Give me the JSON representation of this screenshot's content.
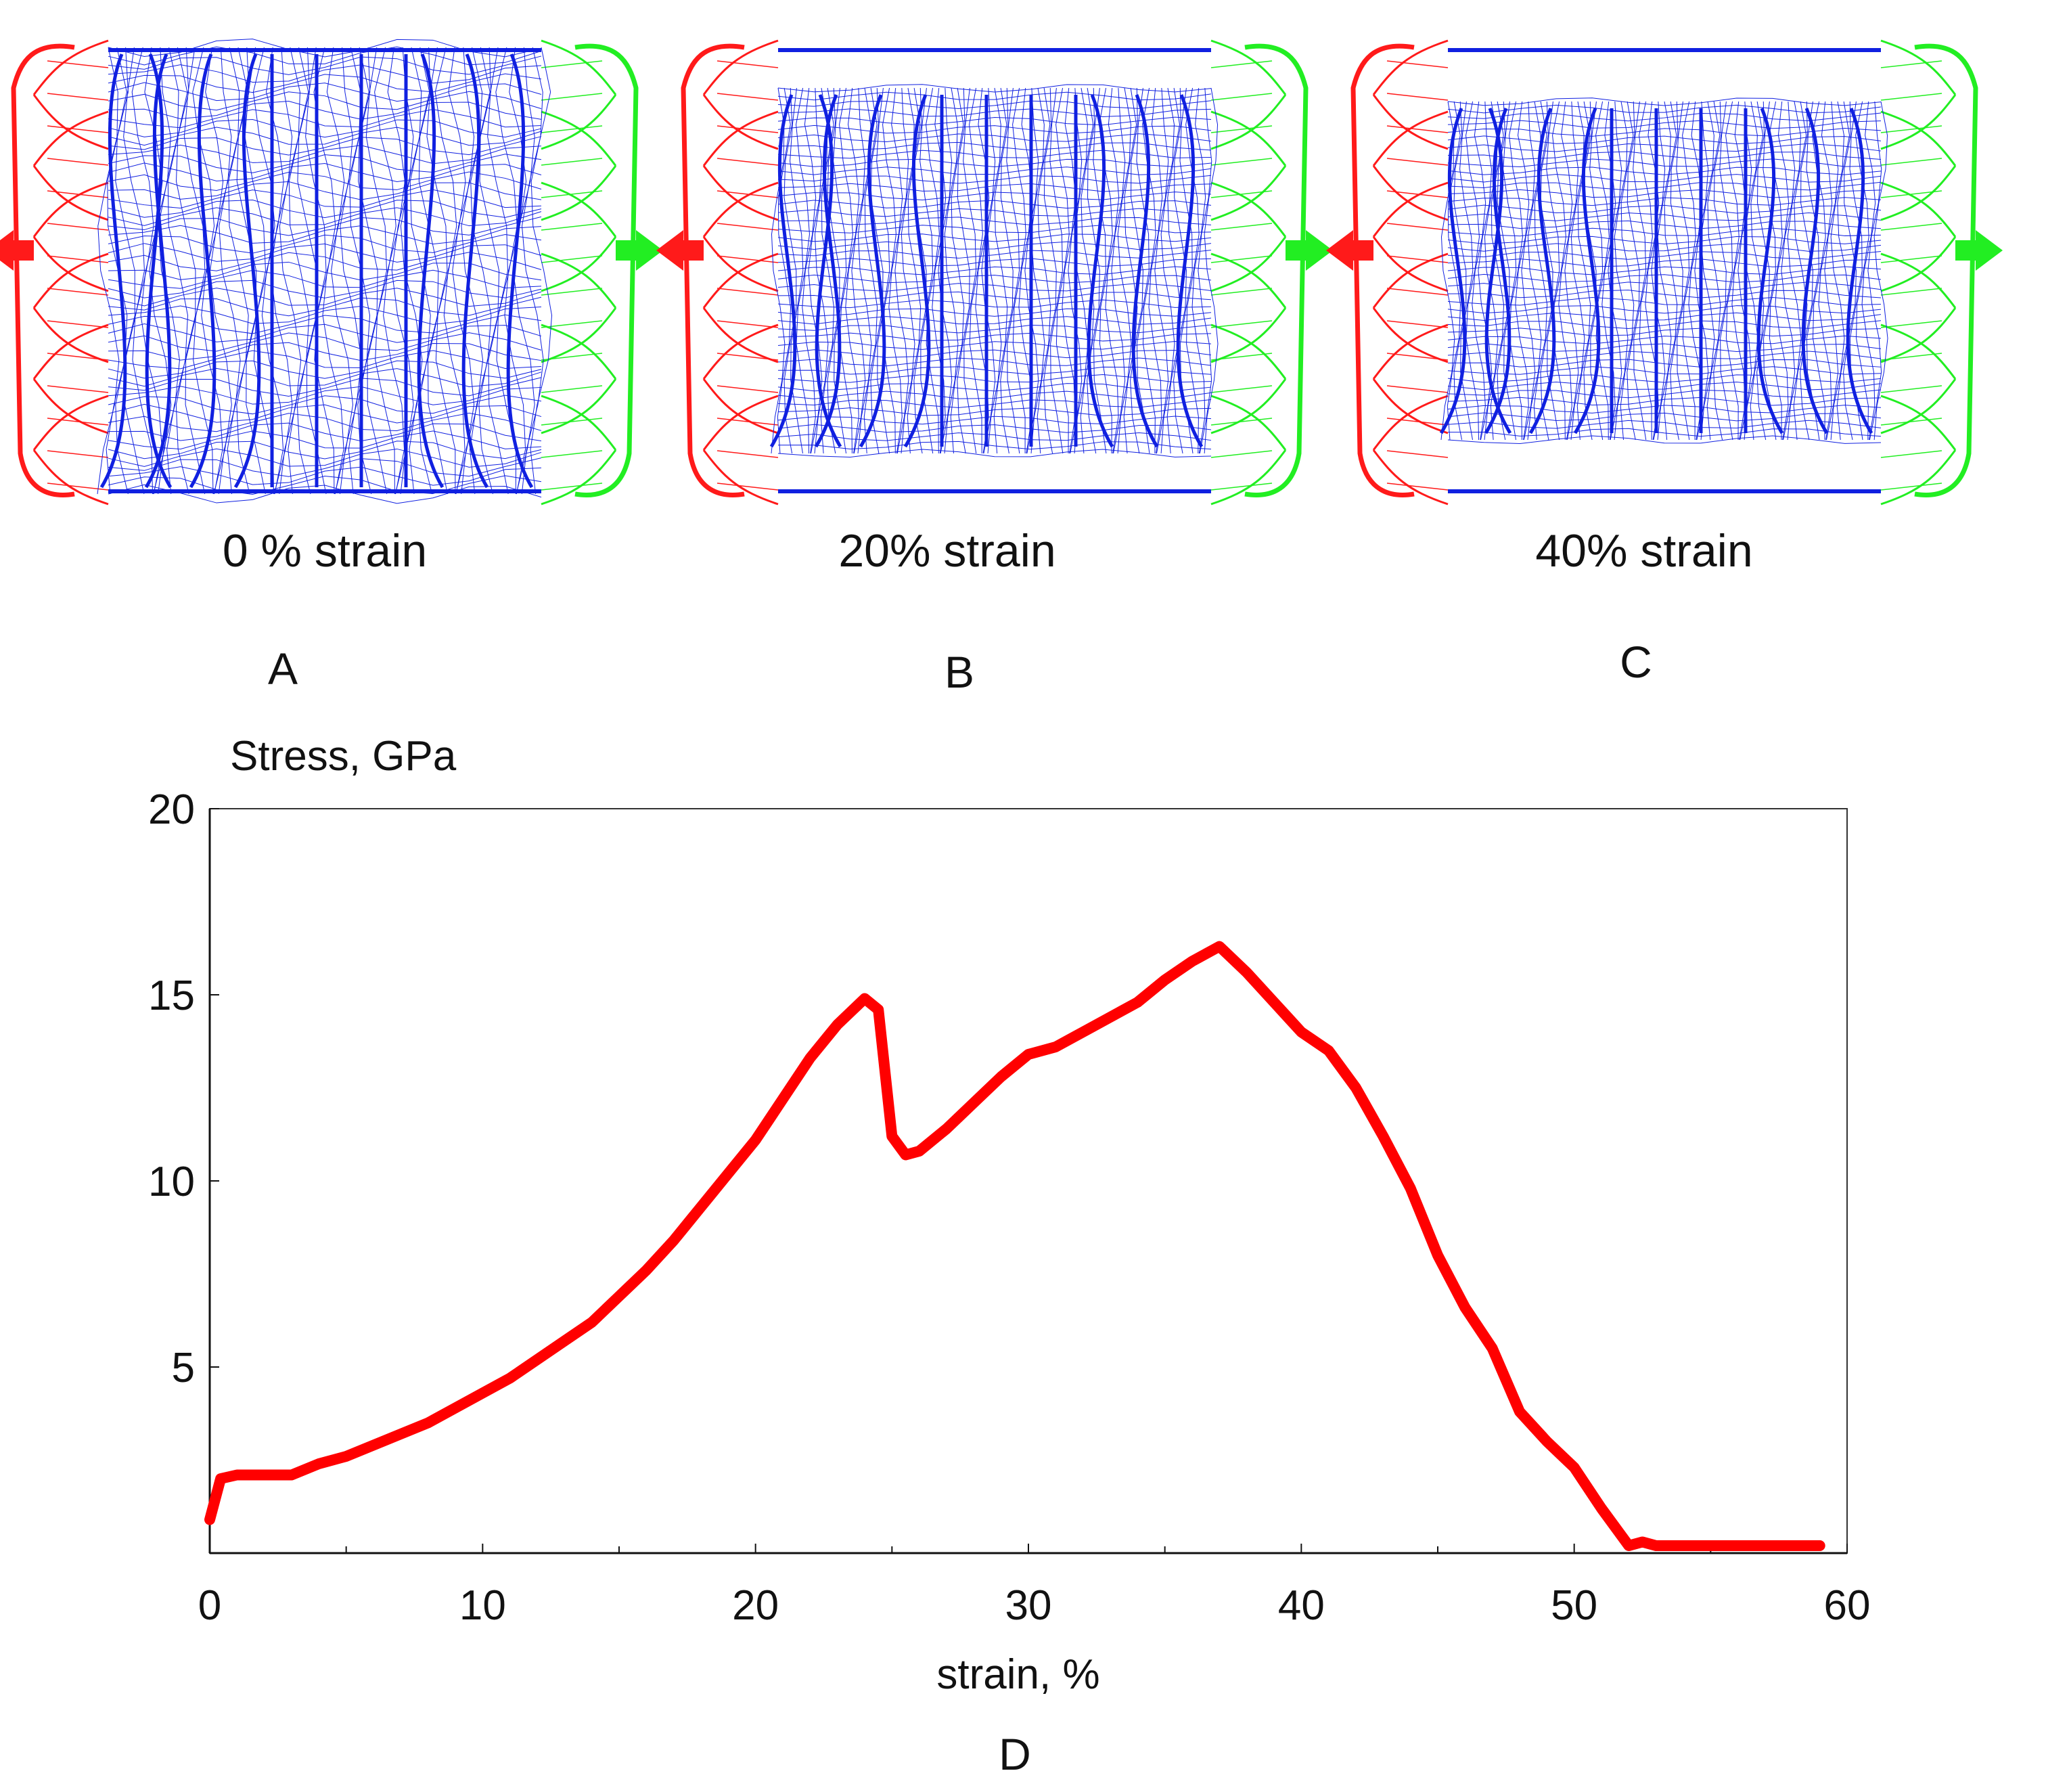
{
  "panels": [
    {
      "id": "A",
      "label": "0 % strain"
    },
    {
      "id": "B",
      "label": "20% strain"
    },
    {
      "id": "C",
      "label": "40% strain"
    }
  ],
  "colors": {
    "left_grip": "#ff1a1a",
    "right_grip": "#22ee22",
    "mesh": "#1020e0",
    "curve": "#ff0000"
  },
  "chart_data": {
    "type": "line",
    "panel_label": "D",
    "title": "",
    "xlabel": "strain, %",
    "ylabel": "Stress, GPa",
    "xlim": [
      0,
      60
    ],
    "ylim": [
      0,
      20
    ],
    "xticks": [
      0,
      10,
      20,
      30,
      40,
      50,
      60
    ],
    "yticks": [
      5,
      10,
      15,
      20
    ],
    "series": [
      {
        "name": "stress-strain",
        "x": [
          0,
          0.4,
          1,
          1.5,
          3,
          4,
          5,
          6,
          7,
          8,
          9,
          10,
          11,
          12,
          13,
          14,
          15,
          16,
          17,
          18,
          19,
          20,
          21,
          22,
          23,
          24,
          24.5,
          25,
          25.5,
          26,
          27,
          28,
          29,
          30,
          31,
          32,
          33,
          34,
          35,
          36,
          37,
          38,
          39,
          40,
          41,
          42,
          43,
          44,
          45,
          46,
          47,
          48,
          49,
          50,
          51,
          52,
          52.5,
          53,
          55,
          57,
          59
        ],
        "y": [
          0.9,
          2.0,
          2.1,
          2.1,
          2.1,
          2.4,
          2.6,
          2.9,
          3.2,
          3.5,
          3.9,
          4.3,
          4.7,
          5.2,
          5.7,
          6.2,
          6.9,
          7.6,
          8.4,
          9.3,
          10.2,
          11.1,
          12.2,
          13.3,
          14.2,
          14.9,
          14.6,
          11.2,
          10.7,
          10.8,
          11.4,
          12.1,
          12.8,
          13.4,
          13.6,
          14.0,
          14.4,
          14.8,
          15.4,
          15.9,
          16.3,
          15.6,
          14.8,
          14.0,
          13.5,
          12.5,
          11.2,
          9.8,
          8.0,
          6.6,
          5.5,
          3.8,
          3.0,
          2.3,
          1.2,
          0.2,
          0.3,
          0.2,
          0.2,
          0.2,
          0.2
        ]
      }
    ]
  }
}
